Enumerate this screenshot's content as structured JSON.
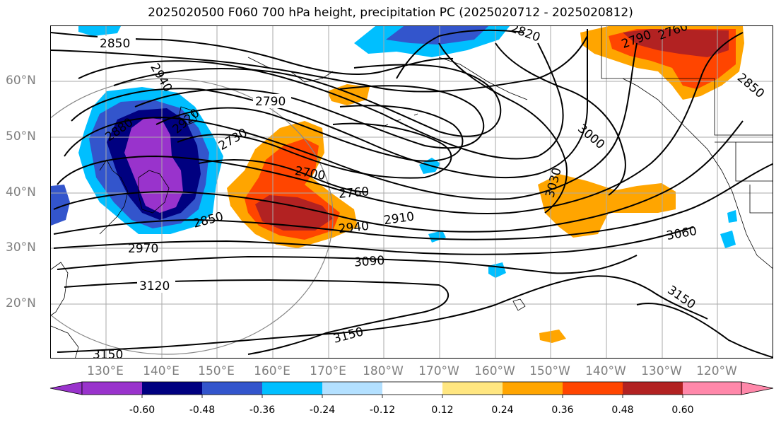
{
  "title": "2025020500 F060 700 hPa height, precipitation PC (2025020712 - 2025020812)",
  "lat_labels": [
    "60°N",
    "50°N",
    "40°N",
    "30°N",
    "20°N"
  ],
  "lon_labels": [
    "130°E",
    "140°E",
    "150°E",
    "160°E",
    "170°E",
    "180°W",
    "170°W",
    "160°W",
    "150°W",
    "140°W",
    "130°W",
    "120°W"
  ],
  "contour_labels": [
    "2850",
    "2940",
    "2880",
    "2920",
    "2790",
    "2730",
    "2700",
    "2760",
    "2850",
    "2910",
    "2940",
    "2970",
    "3090",
    "3120",
    "3150",
    "3150",
    "2820",
    "2790",
    "2760",
    "2850",
    "3000",
    "3030",
    "3060",
    "3150"
  ],
  "colorbar": {
    "ticks": [
      "-0.60",
      "-0.48",
      "-0.36",
      "-0.24",
      "-0.12",
      "0.12",
      "0.24",
      "0.36",
      "0.48",
      "0.60"
    ],
    "colors": [
      "#9933cc",
      "#000080",
      "#3355cc",
      "#00bfff",
      "#b3e0ff",
      "#ffffff",
      "#ffe680",
      "#ffa500",
      "#ff4500",
      "#b22222",
      "#ff88aa"
    ]
  },
  "colors": {
    "contour": "#000000",
    "grid": "#aaaaaa",
    "coast": "#000000",
    "circle": "#888888",
    "axis_text": "#7f7f7f"
  }
}
